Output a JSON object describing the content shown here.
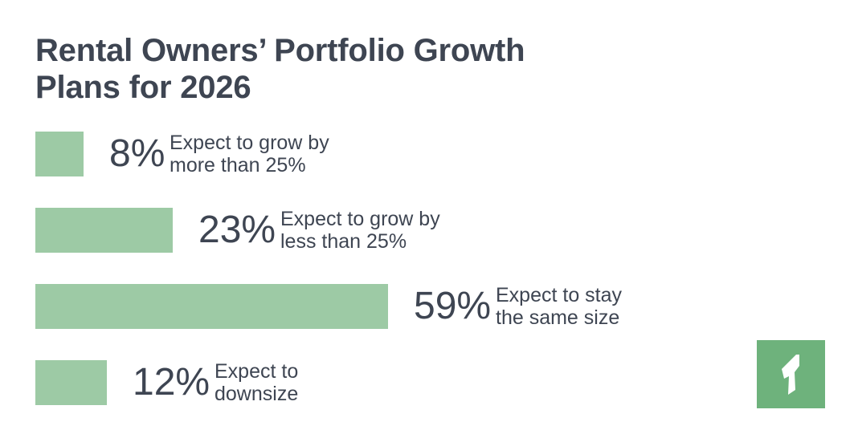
{
  "title": {
    "line1": "Rental Owners’ Portfolio Growth",
    "line2": "Plans for 2026"
  },
  "chart_data": {
    "type": "bar",
    "orientation": "horizontal",
    "title": "Rental Owners’ Portfolio Growth Plans for 2026",
    "categories": [
      "Expect to grow by more than 25%",
      "Expect to grow by less than 25%",
      "Expect to stay the same size",
      "Expect to downsize"
    ],
    "values": [
      8,
      23,
      59,
      12
    ],
    "unit": "%",
    "bars": [
      {
        "value": 8,
        "value_label": "8%",
        "label_line1": "Expect to grow by",
        "label_line2": "more than 25%"
      },
      {
        "value": 23,
        "value_label": "23%",
        "label_line1": "Expect to grow by",
        "label_line2": "less than 25%"
      },
      {
        "value": 59,
        "value_label": "59%",
        "label_line1": "Expect to stay",
        "label_line2": "the same size"
      },
      {
        "value": 12,
        "value_label": "12%",
        "label_line1": "Expect to",
        "label_line2": "downsize"
      }
    ],
    "bar_color": "#9dcaa5",
    "grid": false,
    "legend": "none"
  },
  "logo": {
    "icon": "brand-logo-icon",
    "color": "#6eb27c"
  }
}
